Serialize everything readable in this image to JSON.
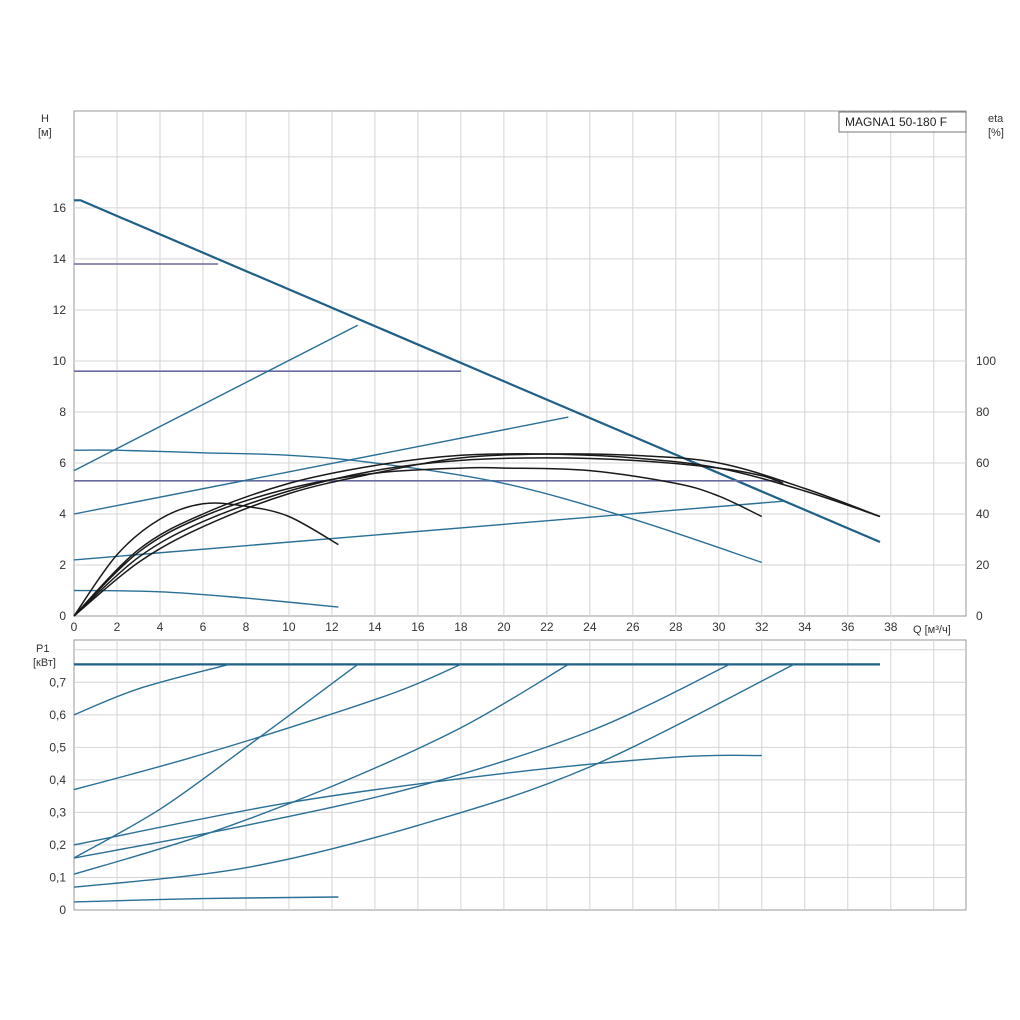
{
  "model_label": "MAGNA1 50-180 F",
  "chart_data": [
    {
      "type": "line",
      "title": "MAGNA1 50-180 F",
      "ylabel_left": "H",
      "ylabel_left_unit": "[м]",
      "ylabel_right": "eta",
      "ylabel_right_unit": "[%]",
      "xlabel": "Q [м³/ч]",
      "xlim": [
        0,
        41.5
      ],
      "ylim": [
        0,
        19.8
      ],
      "ylim_right": [
        0,
        198
      ],
      "grid": true,
      "xticks": [
        "0",
        "2",
        "4",
        "6",
        "8",
        "10",
        "12",
        "14",
        "16",
        "18",
        "20",
        "22",
        "24",
        "26",
        "28",
        "30",
        "32",
        "34",
        "36",
        "38"
      ],
      "yticks": [
        "0",
        "2",
        "4",
        "6",
        "8",
        "10",
        "12",
        "14",
        "16"
      ],
      "yticks_right": [
        "0",
        "20",
        "40",
        "60",
        "80",
        "100"
      ],
      "series": [
        {
          "group": "max_curve",
          "x": [
            0,
            0.3,
            37.5
          ],
          "y": [
            16.3,
            16.3,
            2.9
          ]
        },
        {
          "group": "constant_pressure",
          "x": [
            0,
            6.7
          ],
          "y": [
            13.8,
            13.8
          ]
        },
        {
          "group": "constant_pressure",
          "x": [
            0,
            18
          ],
          "y": [
            9.6,
            9.6
          ]
        },
        {
          "group": "constant_pressure",
          "x": [
            0,
            33
          ],
          "y": [
            5.3,
            5.3
          ]
        },
        {
          "group": "proportional_pressure",
          "x": [
            0,
            13.2
          ],
          "y": [
            5.7,
            11.4
          ]
        },
        {
          "group": "proportional_pressure",
          "x": [
            0,
            23
          ],
          "y": [
            4,
            7.8
          ]
        },
        {
          "group": "proportional_pressure",
          "x": [
            0,
            33
          ],
          "y": [
            2.2,
            4.5
          ]
        },
        {
          "group": "fixed_speed",
          "x": [
            0,
            2,
            6,
            10,
            14,
            20,
            26,
            32
          ],
          "y": [
            6.5,
            6.5,
            6.4,
            6.3,
            6,
            5.2,
            3.8,
            2.1
          ]
        },
        {
          "group": "fixed_speed",
          "x": [
            0,
            4,
            8,
            12.3
          ],
          "y": [
            1,
            0.95,
            0.7,
            0.35
          ]
        },
        {
          "group": "efficiency",
          "x": [
            0,
            2,
            4,
            6,
            8,
            10,
            12.3
          ],
          "y": [
            0,
            2.4,
            3.8,
            4.4,
            4.3,
            3.9,
            2.8
          ]
        },
        {
          "group": "efficiency",
          "x": [
            0,
            3,
            6,
            10,
            14,
            18,
            20,
            24,
            28,
            30,
            32
          ],
          "y": [
            0,
            2.5,
            3.9,
            5.0,
            5.6,
            5.8,
            5.8,
            5.7,
            5.2,
            4.7,
            3.9
          ]
        },
        {
          "group": "efficiency",
          "x": [
            0,
            3,
            6,
            10,
            14,
            18,
            22,
            26,
            30,
            32,
            33
          ],
          "y": [
            0,
            2.3,
            3.7,
            4.9,
            5.7,
            6.1,
            6.2,
            6.1,
            5.8,
            5.5,
            5.2
          ]
        },
        {
          "group": "efficiency",
          "x": [
            0,
            3,
            6,
            10,
            14,
            18,
            22,
            26,
            30,
            34,
            37.5
          ],
          "y": [
            0,
            2.1,
            3.5,
            4.8,
            5.6,
            6.2,
            6.35,
            6.3,
            6.0,
            5.0,
            3.9
          ]
        },
        {
          "group": "efficiency",
          "x": [
            0,
            3,
            6,
            10,
            14,
            18,
            22,
            26,
            30,
            34,
            37.5
          ],
          "y": [
            0,
            2.6,
            4.0,
            5.2,
            5.9,
            6.3,
            6.35,
            6.2,
            5.8,
            4.9,
            3.9
          ]
        }
      ]
    },
    {
      "type": "line",
      "ylabel": "P1",
      "ylabel_unit": "[кВт]",
      "xlim": [
        0,
        41.5
      ],
      "ylim": [
        0,
        0.83
      ],
      "grid": true,
      "yticks": [
        "0",
        "0,1",
        "0,2",
        "0,3",
        "0,4",
        "0,5",
        "0,6",
        "0,7"
      ],
      "series": [
        {
          "group": "max_power",
          "x": [
            0,
            37.5
          ],
          "y": [
            0.755,
            0.755
          ]
        },
        {
          "group": "power",
          "x": [
            0,
            3,
            7.2
          ],
          "y": [
            0.6,
            0.68,
            0.755
          ]
        },
        {
          "group": "power",
          "x": [
            0,
            4,
            8,
            13.2
          ],
          "y": [
            0.16,
            0.31,
            0.5,
            0.755
          ]
        },
        {
          "group": "power",
          "x": [
            0,
            5,
            10,
            15,
            18
          ],
          "y": [
            0.37,
            0.46,
            0.56,
            0.67,
            0.755
          ]
        },
        {
          "group": "power",
          "x": [
            0,
            6,
            12,
            18,
            23
          ],
          "y": [
            0.11,
            0.23,
            0.38,
            0.56,
            0.755
          ]
        },
        {
          "group": "power",
          "x": [
            0,
            8,
            16,
            24,
            30.5
          ],
          "y": [
            0.16,
            0.26,
            0.38,
            0.55,
            0.755
          ]
        },
        {
          "group": "power",
          "x": [
            0,
            8,
            16,
            24,
            33.5
          ],
          "y": [
            0.07,
            0.13,
            0.26,
            0.44,
            0.755
          ]
        },
        {
          "group": "power",
          "x": [
            0,
            10,
            20,
            28,
            32
          ],
          "y": [
            0.2,
            0.33,
            0.42,
            0.47,
            0.475
          ]
        },
        {
          "group": "power",
          "x": [
            0,
            6,
            12.3
          ],
          "y": [
            0.025,
            0.035,
            0.04
          ]
        }
      ]
    }
  ],
  "colors": {
    "curve_blue": "#2a6f96",
    "curve_blue_dark": "#1f5f88",
    "flat_purple": "#6a6aa0",
    "efficiency_black": "#1a1a1a",
    "grid": "#d4d4d4",
    "frame": "#9a9a9a"
  }
}
